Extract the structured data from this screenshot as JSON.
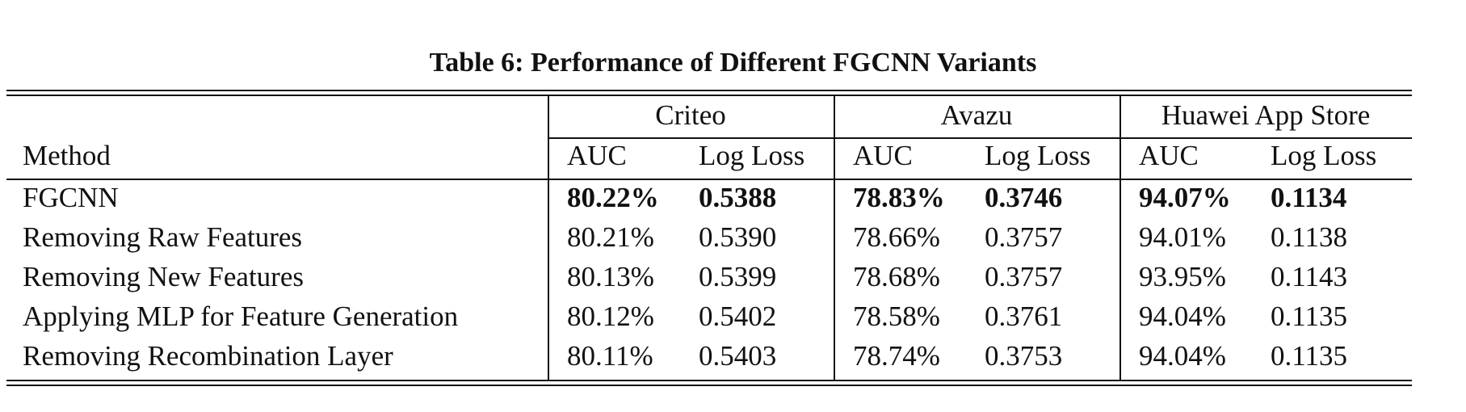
{
  "caption": "Table 6: Performance of Different FGCNN Variants",
  "datasets": [
    "Criteo",
    "Avazu",
    "Huawei App Store"
  ],
  "columns": {
    "method": "Method",
    "metrics": [
      "AUC",
      "Log Loss",
      "AUC",
      "Log Loss",
      "AUC",
      "Log Loss"
    ]
  },
  "rows": [
    {
      "method": "FGCNN",
      "bold": true,
      "values": [
        "80.22%",
        "0.5388",
        "78.83%",
        "0.3746",
        "94.07%",
        "0.1134"
      ]
    },
    {
      "method": "Removing Raw Features",
      "bold": false,
      "values": [
        "80.21%",
        "0.5390",
        "78.66%",
        "0.3757",
        "94.01%",
        "0.1138"
      ]
    },
    {
      "method": "Removing New Features",
      "bold": false,
      "values": [
        "80.13%",
        "0.5399",
        "78.68%",
        "0.3757",
        "93.95%",
        "0.1143"
      ]
    },
    {
      "method": "Applying MLP for Feature Generation",
      "bold": false,
      "values": [
        "80.12%",
        "0.5402",
        "78.58%",
        "0.3761",
        "94.04%",
        "0.1135"
      ]
    },
    {
      "method": "Removing Recombination Layer",
      "bold": false,
      "values": [
        "80.11%",
        "0.5403",
        "78.74%",
        "0.3753",
        "94.04%",
        "0.1135"
      ]
    }
  ]
}
